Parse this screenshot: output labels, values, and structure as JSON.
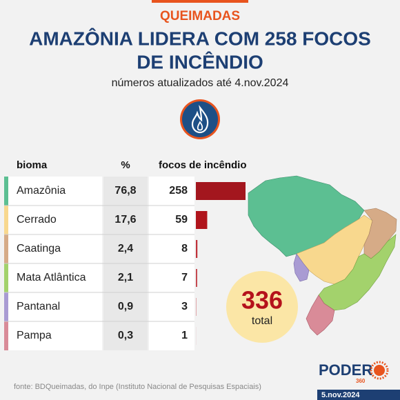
{
  "header": {
    "kicker": "QUEIMADAS",
    "title_lines": [
      "AMAZÔNIA LIDERA COM 258 FOCOS",
      "DE INCÊNDIO"
    ],
    "subtitle": "números atualizados até 4.nov.2024"
  },
  "table": {
    "columns": [
      "bioma",
      "%",
      "focos de incêndio"
    ],
    "rows": [
      {
        "bioma": "Amazônia",
        "pct": "76,8",
        "focos": 258,
        "color": "#5cbf92",
        "bar_color": "#a3161e"
      },
      {
        "bioma": "Cerrado",
        "pct": "17,6",
        "focos": 59,
        "color": "#f8d88e",
        "bar_color": "#b0141c"
      },
      {
        "bioma": "Caatinga",
        "pct": "2,4",
        "focos": 8,
        "color": "#d6ab87",
        "bar_color": "#c0323a"
      },
      {
        "bioma": "Mata Atlântica",
        "pct": "2,1",
        "focos": 7,
        "color": "#a3d26c",
        "bar_color": "#c4464d"
      },
      {
        "bioma": "Pantanal",
        "pct": "0,9",
        "focos": 3,
        "color": "#a99bd3",
        "bar_color": "#dd9a9e"
      },
      {
        "bioma": "Pampa",
        "pct": "0,3",
        "focos": 1,
        "color": "#d98b98",
        "bar_color": "#e8c2c4"
      }
    ]
  },
  "total": {
    "value": 336,
    "label": "total"
  },
  "footer": {
    "source": "fonte: BDQueimadas, do Inpe (Instituto Nacional de Pesquisas Espaciais)",
    "brand": "PODER",
    "brand_sub": "360",
    "date": "5.nov.2024"
  }
}
